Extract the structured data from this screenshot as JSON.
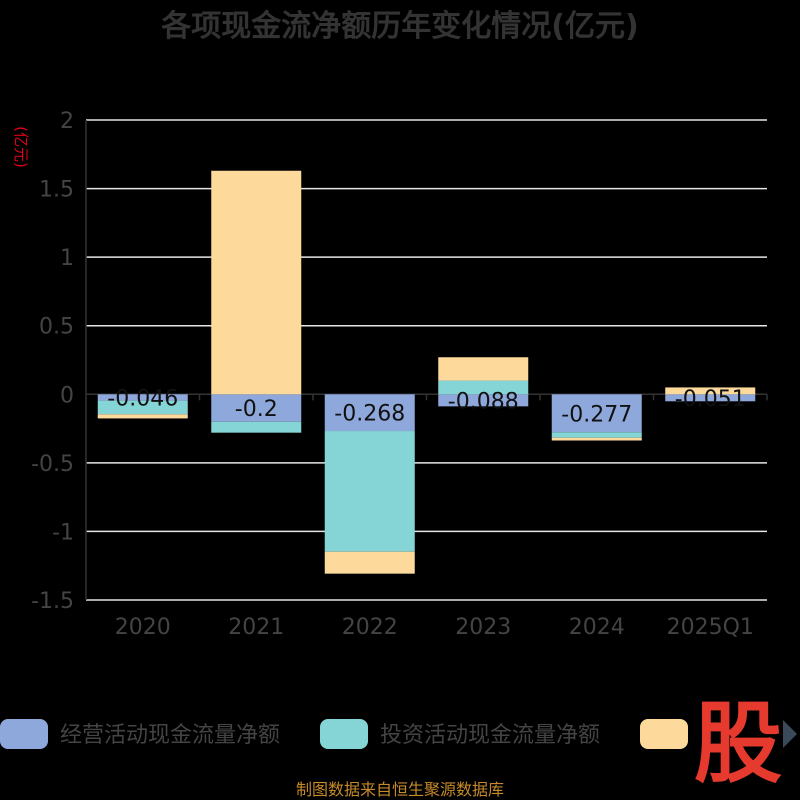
{
  "chart_data": {
    "type": "bar",
    "stacked": true,
    "title": "各项现金流净额历年变化情况(亿元)",
    "ylabel": "(亿元)",
    "categories": [
      "2020",
      "2021",
      "2022",
      "2023",
      "2024",
      "2025Q1"
    ],
    "ylim": [
      -1.5,
      2
    ],
    "yticks": [
      2,
      1.5,
      1,
      0.5,
      0,
      -0.5,
      -1,
      -1.5
    ],
    "ytick_labels": [
      "2",
      "1.5",
      "1",
      "0.5",
      "0",
      "-0.5",
      "-1",
      "-1.5"
    ],
    "grid": true,
    "legend_position": "bottom",
    "series": [
      {
        "name": "经营活动现金流量净额",
        "color": "#8fa8dc",
        "values": [
          -0.046,
          -0.2,
          -0.268,
          -0.088,
          -0.277,
          -0.051
        ],
        "labels": [
          "-0.046",
          "-0.2",
          "-0.268",
          "-0.088",
          "-0.277",
          "-0.051"
        ]
      },
      {
        "name": "投资活动现金流量净额",
        "color": "#86d5d6",
        "values": [
          -0.1,
          -0.08,
          -0.88,
          0.1,
          -0.04,
          0.0
        ]
      },
      {
        "name": "",
        "color": "#fdd99c",
        "values": [
          -0.03,
          1.63,
          -0.16,
          0.17,
          -0.02,
          0.05
        ]
      }
    ]
  },
  "footer": "制图数据来自恒生聚源数据库",
  "brand_mark": "股"
}
